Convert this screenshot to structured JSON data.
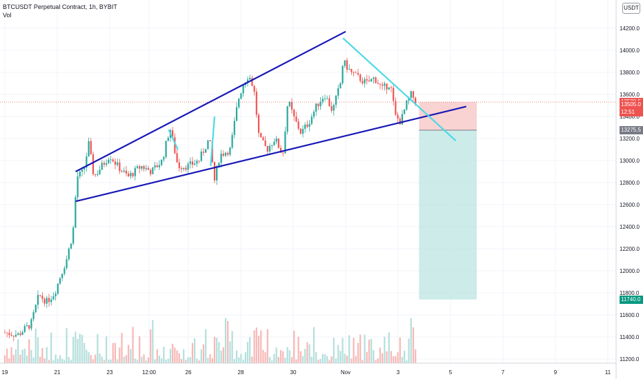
{
  "header": {
    "symbol_line": "BTCUSDT Perpetual Contract, 1h, BYBIT",
    "volume_label": "Vol",
    "currency": "USDT"
  },
  "chart_data": {
    "type": "candlestick",
    "symbol": "BTCUSDT Perpetual Contract",
    "interval": "1h",
    "exchange": "BYBIT",
    "y_axis": {
      "ticks": [
        11200,
        11400,
        11600,
        11800,
        12000,
        12200,
        12400,
        12600,
        12800,
        13000,
        13200,
        13400,
        13600,
        13800,
        14000,
        14200
      ],
      "tick_labels": [
        "11200.0",
        "11400.0",
        "11600.0",
        "11800.0",
        "12000.0",
        "12200.0",
        "12400.0",
        "12600.0",
        "12800.0",
        "13000.0",
        "13200.0",
        "13400.0",
        "13600.0",
        "13800.0",
        "14000.0",
        "14200.0"
      ],
      "range": [
        11160,
        14400
      ]
    },
    "x_axis": {
      "tick_labels": [
        "19",
        "21",
        "23",
        "12:00",
        "26",
        "28",
        "30",
        "Nov",
        "3",
        "5",
        "7",
        "9",
        "11"
      ],
      "range_days": [
        "Oct 19",
        "Nov 11"
      ]
    },
    "price_labels": [
      {
        "text": "13530.5",
        "value": 13530.5,
        "color": "#ef5350"
      },
      {
        "text": "13505.0",
        "value": 13505.0,
        "color": "#ef5350"
      },
      {
        "text": "12:51",
        "value": 13435,
        "color": "#ef5350"
      },
      {
        "text": "13275.5",
        "value": 13275.5,
        "color": "#787b86"
      },
      {
        "text": "11740.0",
        "value": 11740.0,
        "color": "#089981"
      }
    ],
    "trendlines": [
      {
        "name": "upper wedge",
        "color": "#1717b8",
        "from": [
          "Oct 21.7",
          12900
        ],
        "to": [
          "Nov 1.0",
          14170
        ]
      },
      {
        "name": "lower wedge",
        "color": "#1717b8",
        "from": [
          "Oct 21.7",
          12630
        ],
        "to": [
          "Nov 5.6",
          13490
        ]
      },
      {
        "name": "descending",
        "color": "#4dd9e6",
        "from": [
          "Nov 0.9",
          14110
        ],
        "to": [
          "Nov 5.2",
          13180
        ]
      }
    ],
    "short_position": {
      "entry": 13275.5,
      "stop": 13530.5,
      "target": 11740.0,
      "start": "Nov 3.8",
      "end": "Nov 6.0"
    },
    "price_path": [
      [
        "Oct 19.0",
        11440
      ],
      [
        "Oct 19.5",
        11420
      ],
      [
        "Oct 20.0",
        11520
      ],
      [
        "Oct 20.3",
        11780
      ],
      [
        "Oct 20.6",
        11720
      ],
      [
        "Oct 20.9",
        11800
      ],
      [
        "Oct 21.1",
        11940
      ],
      [
        "Oct 21.35",
        12100
      ],
      [
        "Oct 21.6",
        12350
      ],
      [
        "Oct 21.75",
        12850
      ],
      [
        "Oct 22.0",
        12900
      ],
      [
        "Oct 22.2",
        13150
      ],
      [
        "Oct 22.4",
        12850
      ],
      [
        "Oct 22.7",
        12950
      ],
      [
        "Oct 23.0",
        13050
      ],
      [
        "Oct 23.3",
        12950
      ],
      [
        "Oct 23.7",
        12850
      ],
      [
        "Oct 24.2",
        12950
      ],
      [
        "Oct 24.6",
        12900
      ],
      [
        "Oct 25.0",
        13000
      ],
      [
        "Oct 25.3",
        13300
      ],
      [
        "Oct 25.6",
        12950
      ],
      [
        "Oct 26.0",
        12950
      ],
      [
        "Oct 26.4",
        13000
      ],
      [
        "Oct 26.8",
        13200
      ],
      [
        "Oct 27.0",
        12820
      ],
      [
        "Oct 27.2",
        13050
      ],
      [
        "Oct 27.6",
        13100
      ],
      [
        "Oct 27.9",
        13550
      ],
      [
        "Oct 28.1",
        13700
      ],
      [
        "Oct 28.3",
        13780
      ],
      [
        "Oct 28.5",
        13650
      ],
      [
        "Oct 28.7",
        13200
      ],
      [
        "Oct 29.0",
        13100
      ],
      [
        "Oct 29.3",
        13200
      ],
      [
        "Oct 29.6",
        13050
      ],
      [
        "Oct 29.8",
        13550
      ],
      [
        "Oct 30.0",
        13400
      ],
      [
        "Oct 30.3",
        13250
      ],
      [
        "Oct 30.6",
        13350
      ],
      [
        "Oct 30.9",
        13500
      ],
      [
        "Oct 31.2",
        13600
      ],
      [
        "Oct 31.5",
        13450
      ],
      [
        "Oct 31.8",
        13700
      ],
      [
        "Nov 0.9",
        13900
      ],
      [
        "Nov 1.2",
        13800
      ],
      [
        "Nov 1.5",
        13750
      ],
      [
        "Nov 1.8",
        13700
      ],
      [
        "Nov 2.1",
        13750
      ],
      [
        "Nov 2.4",
        13650
      ],
      [
        "Nov 2.7",
        13700
      ],
      [
        "Nov 2.9",
        13400
      ],
      [
        "Nov 3.1",
        13350
      ],
      [
        "Nov 3.3",
        13500
      ],
      [
        "Nov 3.5",
        13600
      ],
      [
        "Nov 3.7",
        13530
      ]
    ],
    "volume": "relative bars only, no values printed"
  },
  "colors": {
    "up": "#26a69a",
    "down": "#ef5350",
    "volume_up": "#b2dfdb",
    "volume_down": "#f7b7b5",
    "wedge": "#1717b8",
    "descending": "#4dd9e6",
    "stop_zone": "#f8c7c7",
    "target_zone": "#bfe6e3",
    "axis_text": "#131722"
  }
}
